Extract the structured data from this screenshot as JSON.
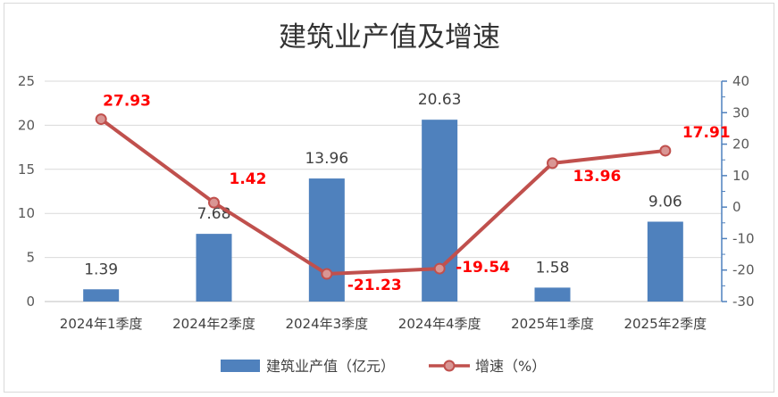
{
  "chart_data": {
    "type": "bar",
    "title": "建筑业产值及增速",
    "categories": [
      "2024年1季度",
      "2024年2季度",
      "2024年3季度",
      "2024年4季度",
      "2025年1季度",
      "2025年2季度"
    ],
    "series": [
      {
        "name": "建筑业产值（亿元）",
        "type": "bar",
        "axis": "left",
        "values": [
          1.39,
          7.68,
          13.96,
          20.63,
          1.58,
          9.06
        ]
      },
      {
        "name": "增速（%）",
        "type": "line",
        "axis": "right",
        "values": [
          27.93,
          1.42,
          -21.23,
          -19.54,
          13.96,
          17.91
        ]
      }
    ],
    "y_left": {
      "min": 0,
      "max": 25,
      "step": 5,
      "ticks": [
        "0",
        "5",
        "10",
        "15",
        "20",
        "25"
      ]
    },
    "y_right": {
      "min": -30,
      "max": 40,
      "step": 10,
      "ticks": [
        "-30",
        "-20",
        "-10",
        "0",
        "10",
        "20",
        "30",
        "40"
      ]
    },
    "grid": true,
    "legend_position": "bottom",
    "colors": {
      "bar": "#4f81bd",
      "line": "#c0504d",
      "line_label": "#ff0000",
      "right_axis": "#4f81bd"
    }
  }
}
